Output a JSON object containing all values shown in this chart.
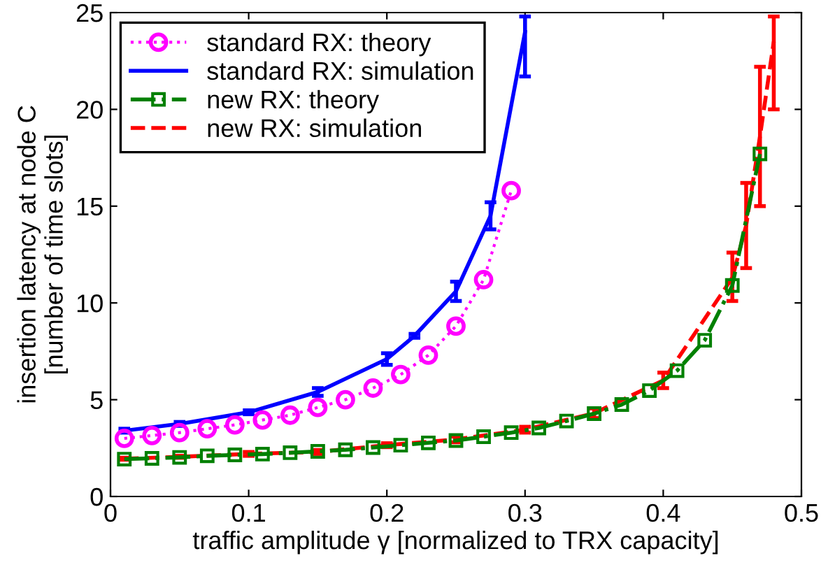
{
  "chart_data": {
    "type": "line",
    "xlabel": "traffic amplitude γ [normalized to TRX capacity]",
    "ylabel": "insertion latency at node C\n[number of time slots]",
    "xlim": [
      0,
      0.5
    ],
    "ylim": [
      0,
      25
    ],
    "xticks": [
      0,
      0.1,
      0.2,
      0.3,
      0.4,
      0.5
    ],
    "yticks": [
      0,
      5,
      10,
      15,
      20,
      25
    ],
    "grid": false,
    "legend": "top left",
    "series": [
      {
        "name": "standard RX: theory",
        "color": "#ff00ff",
        "marker": "circle",
        "line_style": "dotted",
        "x": [
          0.01,
          0.03,
          0.05,
          0.07,
          0.09,
          0.11,
          0.13,
          0.15,
          0.17,
          0.19,
          0.21,
          0.23,
          0.25,
          0.27,
          0.29
        ],
        "values": [
          3.0,
          3.15,
          3.3,
          3.5,
          3.7,
          3.95,
          4.2,
          4.6,
          5.0,
          5.6,
          6.3,
          7.3,
          8.8,
          11.2,
          15.8
        ]
      },
      {
        "name": "standard RX: simulation",
        "color": "#0000ff",
        "marker": "none",
        "line_style": "solid",
        "x": [
          0.01,
          0.05,
          0.1,
          0.15,
          0.2,
          0.22,
          0.25,
          0.275,
          0.3
        ],
        "values": [
          3.4,
          3.75,
          4.35,
          5.4,
          7.1,
          8.3,
          10.6,
          14.5,
          24
        ],
        "errors": [
          0.1,
          0.1,
          0.1,
          0.2,
          0.3,
          0.1,
          0.5,
          0.7,
          [
            21.7,
            24.8
          ]
        ]
      },
      {
        "name": "new RX: theory",
        "color": "#008000",
        "marker": "square",
        "line_style": "dashdot",
        "x": [
          0.01,
          0.03,
          0.05,
          0.07,
          0.09,
          0.11,
          0.13,
          0.15,
          0.17,
          0.19,
          0.21,
          0.23,
          0.25,
          0.27,
          0.29,
          0.31,
          0.33,
          0.35,
          0.37,
          0.39,
          0.41,
          0.43,
          0.45,
          0.47
        ],
        "values": [
          1.93,
          1.97,
          2.02,
          2.1,
          2.15,
          2.19,
          2.26,
          2.33,
          2.41,
          2.53,
          2.65,
          2.77,
          2.89,
          3.09,
          3.3,
          3.54,
          3.9,
          4.28,
          4.75,
          5.47,
          6.5,
          8.07,
          10.9,
          17.7
        ]
      },
      {
        "name": "new RX: simulation",
        "color": "#ff0000",
        "marker": "none",
        "line_style": "dashed",
        "x": [
          0.01,
          0.05,
          0.1,
          0.15,
          0.2,
          0.25,
          0.3,
          0.35,
          0.4,
          0.45,
          0.46,
          0.47,
          0.48
        ],
        "values": [
          1.95,
          2.05,
          2.2,
          2.3,
          2.65,
          2.95,
          3.45,
          4.3,
          6.0,
          11.3,
          14.0,
          18.6,
          23.5
        ],
        "errors": [
          0.05,
          0.05,
          0.1,
          0.1,
          0.1,
          0.15,
          0.15,
          0.25,
          0.4,
          [
            10.1,
            12.6
          ],
          [
            11.8,
            16.2
          ],
          [
            15.0,
            22.2
          ],
          [
            20.0,
            24.8
          ]
        ]
      }
    ]
  }
}
